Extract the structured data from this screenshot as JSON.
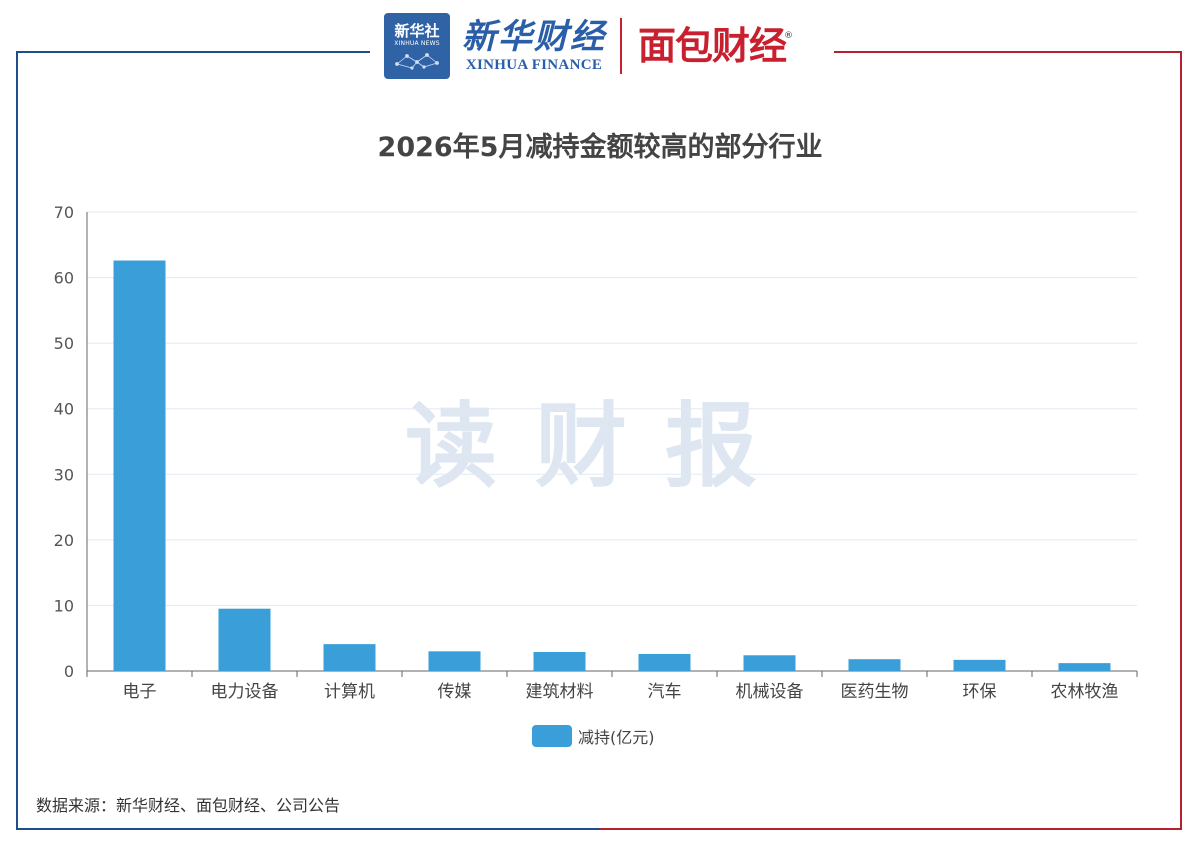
{
  "header": {
    "xinhua_badge_cn": "新华社",
    "xinhua_badge_en": "XINHUA NEWS",
    "xinhua_finance_cn": "新华财经",
    "xinhua_finance_en": "XINHUA FINANCE",
    "mianbao_logo": "面包财经",
    "registered_mark": "®"
  },
  "watermark": "读财报",
  "source": "数据来源：新华财经、面包财经、公司公告",
  "colors": {
    "bar": "#3a9fd9",
    "frame_left": "#1f4e8c",
    "frame_right": "#b5202e",
    "grid": "#e3e8f2",
    "watermark": "#dde6f1"
  },
  "chart_data": {
    "type": "bar",
    "title": "2026年5月减持金额较高的部分行业",
    "categories": [
      "电子",
      "电力设备",
      "计算机",
      "传媒",
      "建筑材料",
      "汽车",
      "机械设备",
      "医药生物",
      "环保",
      "农林牧渔"
    ],
    "series": [
      {
        "name": "减持(亿元)",
        "values": [
          62.6,
          9.5,
          4.1,
          3.0,
          2.9,
          2.6,
          2.4,
          1.8,
          1.7,
          1.2
        ]
      }
    ],
    "ylim": [
      0,
      70
    ],
    "yticks": [
      0,
      10,
      20,
      30,
      40,
      50,
      60,
      70
    ],
    "grid": true,
    "legend": "bottom-center"
  }
}
